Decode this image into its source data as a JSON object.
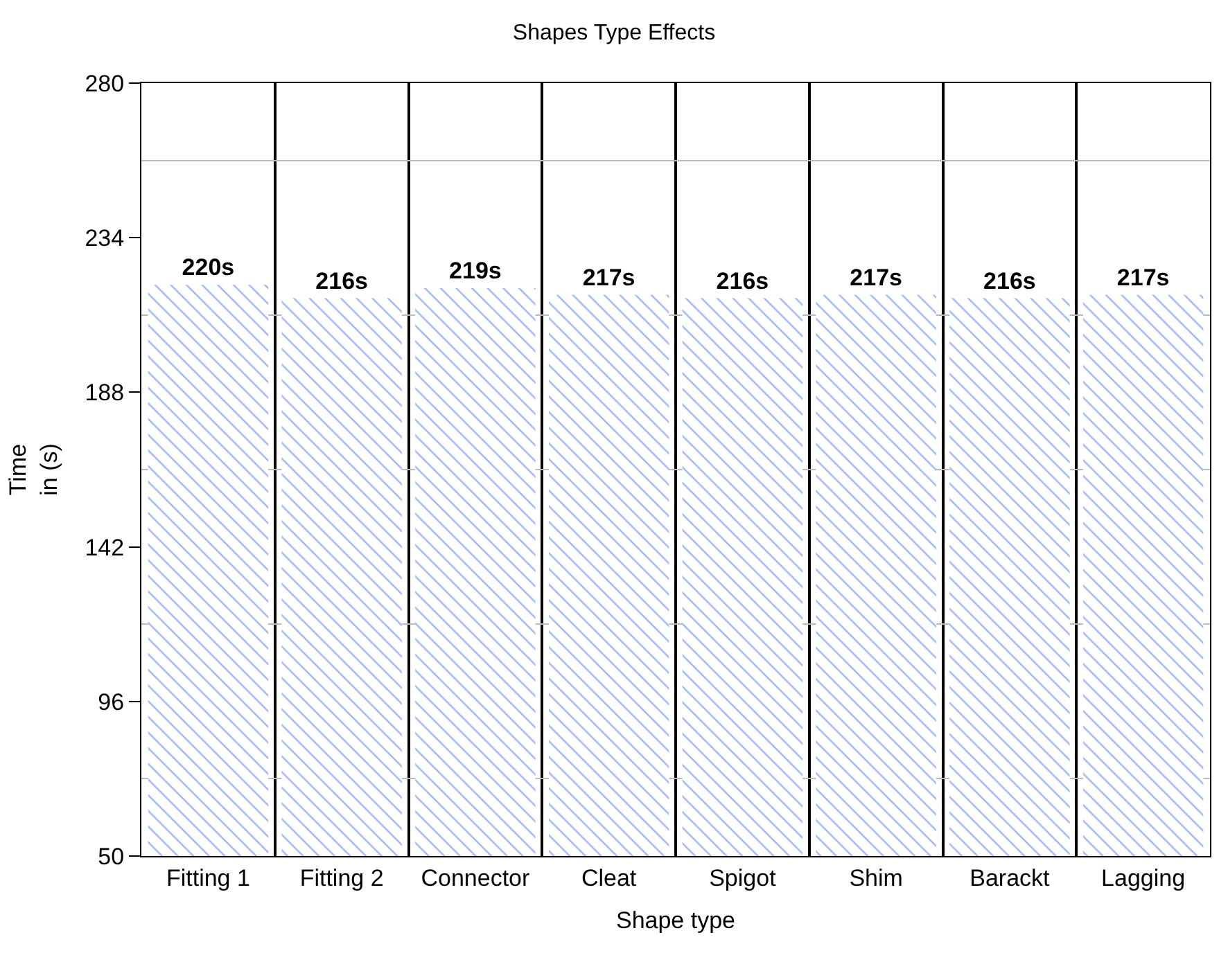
{
  "chart_data": {
    "type": "bar",
    "title": "Shapes Type Effects",
    "xlabel": "Shape type",
    "ylabel": "Time\nin (s)",
    "categories": [
      "Fitting 1",
      "Fitting 2",
      "Connector",
      "Cleat",
      "Spigot",
      "Shim",
      "Barackt",
      "Lagging"
    ],
    "values": [
      220,
      216,
      219,
      217,
      216,
      217,
      216,
      217
    ],
    "value_labels": [
      "220s",
      "216s",
      "219s",
      "217s",
      "216s",
      "217s",
      "216s",
      "217s"
    ],
    "color": "#3b6ef5",
    "ylim": [
      50,
      280
    ],
    "yticks": [
      50,
      96,
      142,
      188,
      234,
      280
    ],
    "grid": true
  }
}
